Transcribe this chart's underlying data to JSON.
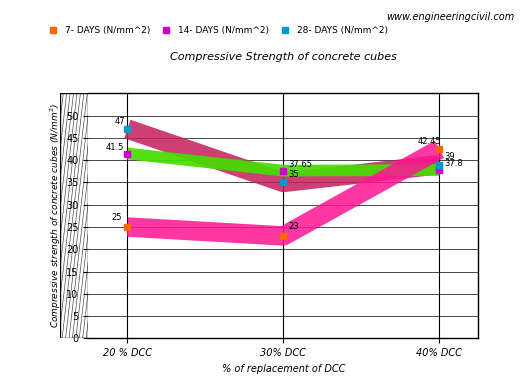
{
  "title": "Compressive Strength of concrete cubes",
  "watermark": "www.engineeringcivil.com",
  "xlabel": "% of replacement of DCC",
  "ylabel": "Compressive strength of concrete cubes (N/mm^2)",
  "categories": [
    "20 % DCC",
    "30% DCC",
    "40% DCC"
  ],
  "vals_7": [
    25.0,
    23.0,
    42.45
  ],
  "vals_14": [
    41.5,
    37.65,
    37.8
  ],
  "vals_28": [
    47.0,
    35.0,
    39.0
  ],
  "annot_7": [
    "25",
    "23",
    "42.45"
  ],
  "annot_14": [
    "41.5",
    "37.65",
    "37.8"
  ],
  "annot_28": [
    "47",
    "35",
    "39"
  ],
  "color_28_band": "#C41E5B",
  "color_14_band": "#44DD00",
  "color_7_band": "#FF1493",
  "marker_7": "#FF6600",
  "marker_14": "#CC00CC",
  "marker_28": "#0099CC",
  "ylim": [
    0,
    55
  ],
  "yticks": [
    0,
    5,
    10,
    15,
    20,
    25,
    30,
    35,
    40,
    45,
    50
  ],
  "band_lw": 14,
  "background_color": "#FFFFFF"
}
